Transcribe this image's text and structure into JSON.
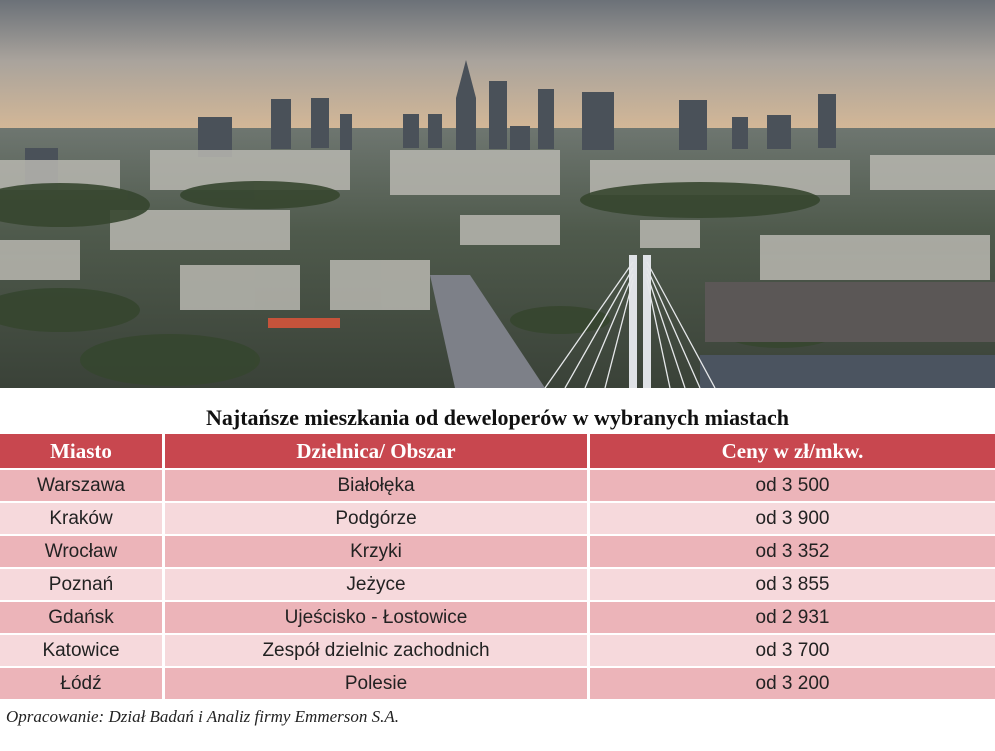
{
  "title": "Najtańsze mieszkania od deweloperów w wybranych miastach",
  "table": {
    "headers": [
      "Miasto",
      "Dzielnica/ Obszar",
      "Ceny w zł/mkw."
    ],
    "rows": [
      [
        "Warszawa",
        "Białołęka",
        "od 3 500"
      ],
      [
        "Kraków",
        "Podgórze",
        "od 3 900"
      ],
      [
        "Wrocław",
        "Krzyki",
        "od 3 352"
      ],
      [
        "Poznań",
        "Jeżyce",
        "od 3 855"
      ],
      [
        "Gdańsk",
        "Ujeścisko - Łostowice",
        "od 2 931"
      ],
      [
        "Katowice",
        "Zespół dzielnic zachodnich",
        "od 3 700"
      ],
      [
        "Łódź",
        "Polesie",
        "od 3 200"
      ]
    ]
  },
  "source": "Opracowanie: Dział Badań i Analiz firmy Emmerson S.A.",
  "colors": {
    "header_bg": "#c8474f",
    "row_odd": "#ecb4b9",
    "row_even": "#f6d9dc"
  }
}
